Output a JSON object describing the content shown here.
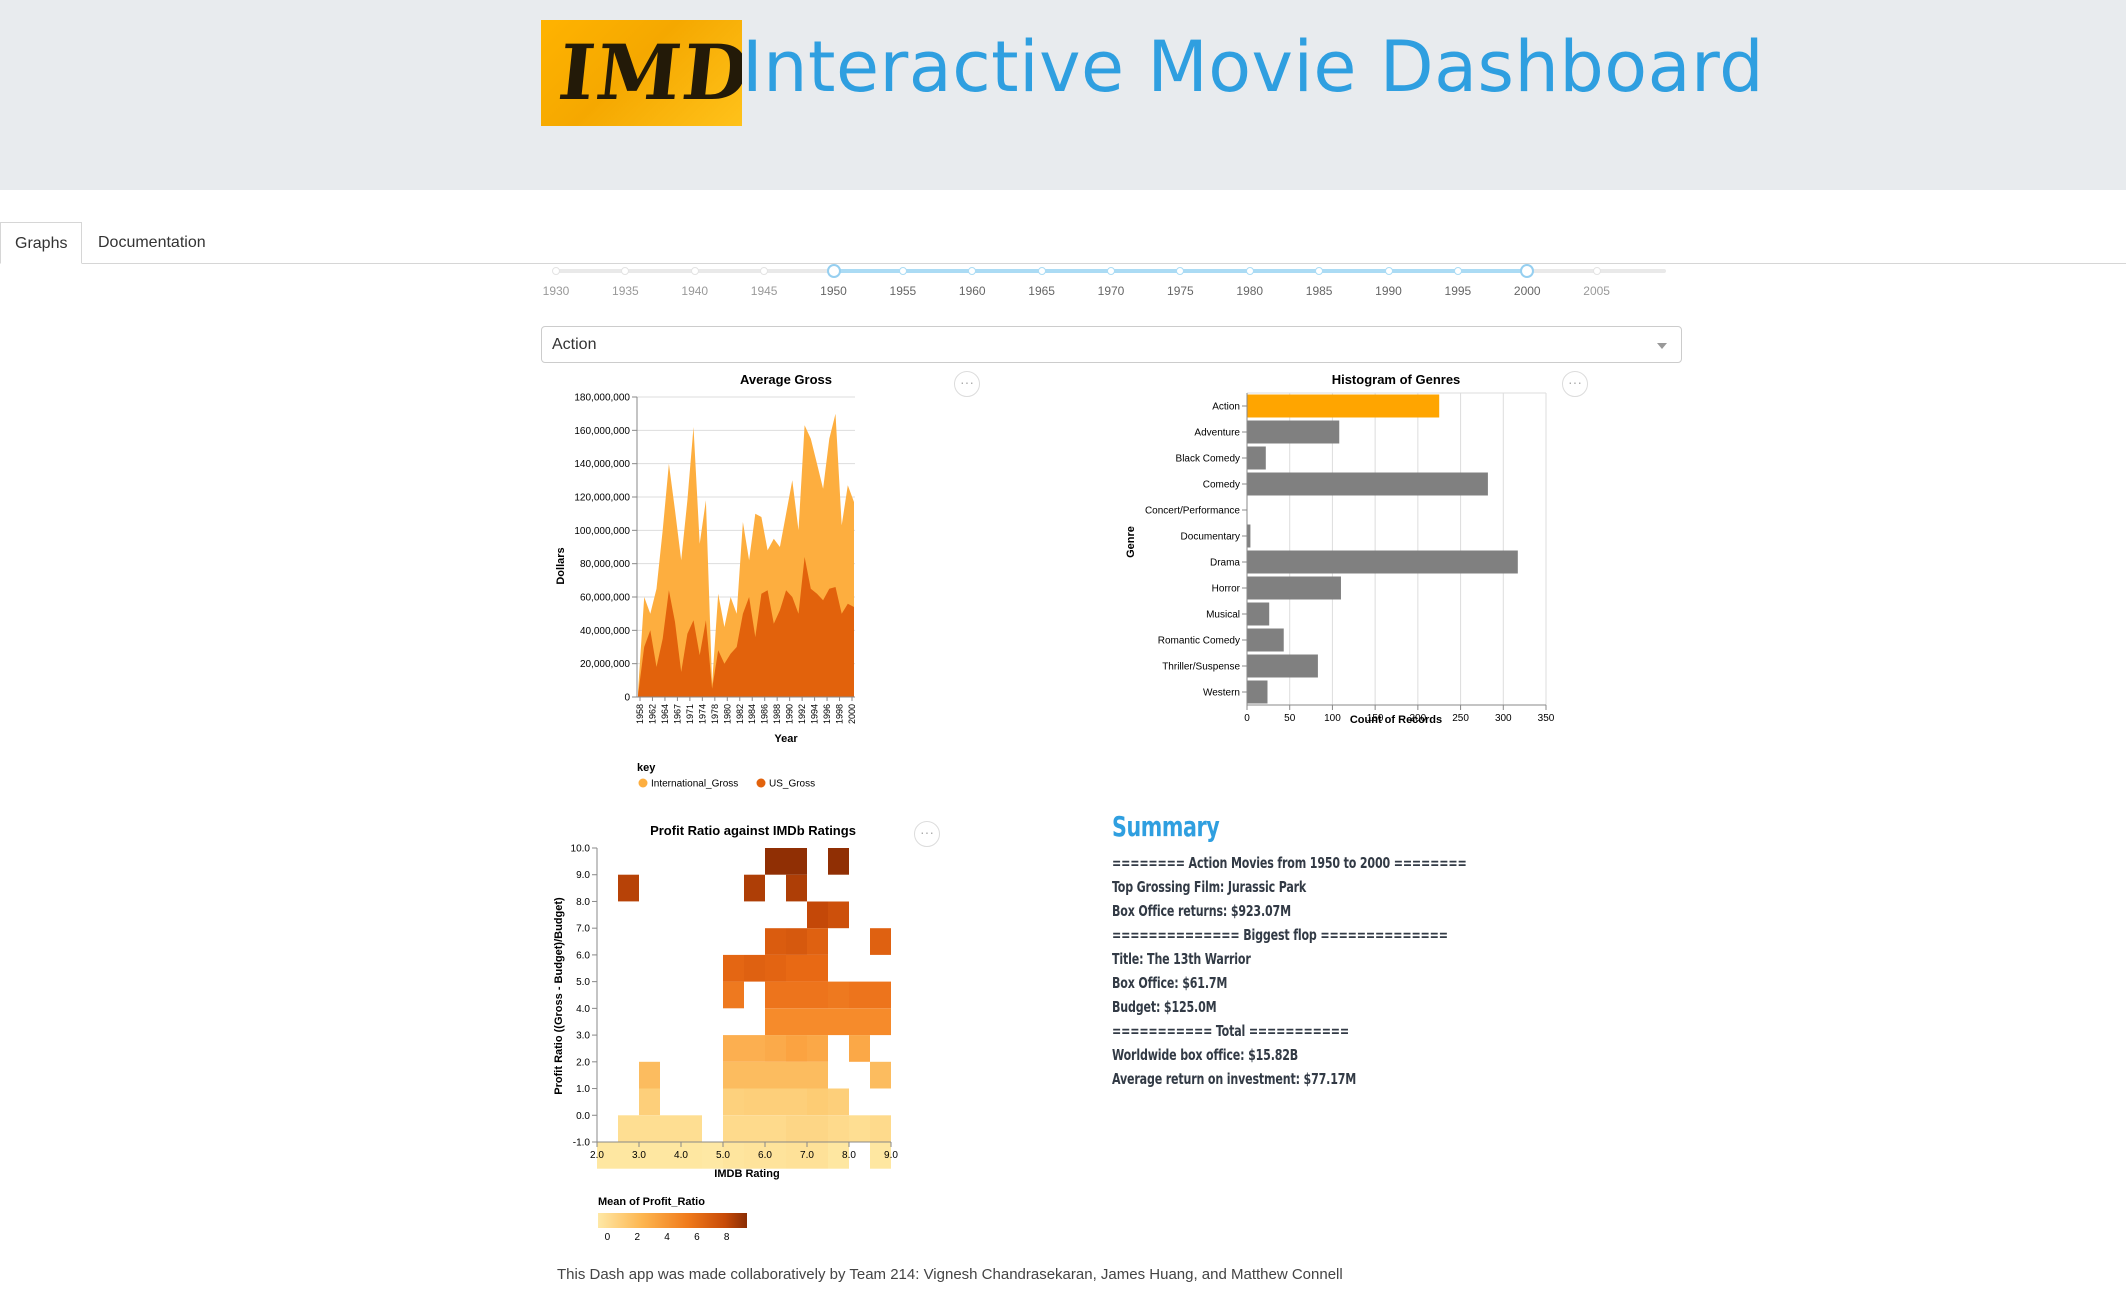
{
  "header": {
    "logo_text": "IMDb",
    "title": "Interactive Movie Dashboard"
  },
  "tabs": [
    {
      "label": "Graphs",
      "active": true
    },
    {
      "label": "Documentation",
      "active": false
    }
  ],
  "year_slider": {
    "marks": [
      "1930",
      "1935",
      "1940",
      "1945",
      "1950",
      "1955",
      "1960",
      "1965",
      "1970",
      "1975",
      "1980",
      "1985",
      "1990",
      "1995",
      "2000",
      "2005"
    ],
    "min": 1930,
    "max": 2010,
    "selected_range": [
      1950,
      2000
    ]
  },
  "genre_dropdown": {
    "selected": "Action",
    "caret_icon": "chevron-down-icon"
  },
  "colors": {
    "accent": "#2f9fe0",
    "international_gross": "#fdae3f",
    "us_gross": "#e2620c",
    "highlight_bar": "#ffa500",
    "bar": "#808080"
  },
  "chart_data": [
    {
      "id": "gross",
      "type": "area",
      "title": "Average Gross",
      "xlabel": "Year",
      "ylabel": "Dollars",
      "x_ticks": [
        "1958",
        "1962",
        "1964",
        "1967",
        "1971",
        "1974",
        "1978",
        "1980",
        "1982",
        "1984",
        "1986",
        "1988",
        "1990",
        "1992",
        "1994",
        "1996",
        "1998",
        "2000"
      ],
      "yticks": [
        "0",
        "20,000,000",
        "40,000,000",
        "60,000,000",
        "80,000,000",
        "100,000,000",
        "120,000,000",
        "140,000,000",
        "160,000,000",
        "180,000,000"
      ],
      "ylim": [
        0,
        180000000
      ],
      "legend_title": "key",
      "legend_position": "bottom-left",
      "series": [
        {
          "name": "International_Gross",
          "color": "#fdae3f",
          "values": [
            3000000,
            60000000,
            50000000,
            65000000,
            100000000,
            140000000,
            112000000,
            82000000,
            118000000,
            162000000,
            92000000,
            118000000,
            8000000,
            62000000,
            42000000,
            60000000,
            50000000,
            105000000,
            82000000,
            110000000,
            108000000,
            88000000,
            95000000,
            90000000,
            110000000,
            130000000,
            100000000,
            163000000,
            155000000,
            140000000,
            125000000,
            155000000,
            170000000,
            103000000,
            127000000,
            117000000
          ]
        },
        {
          "name": "US_Gross",
          "color": "#e2620c",
          "values": [
            1000000,
            30000000,
            40000000,
            18000000,
            35000000,
            64000000,
            45000000,
            15000000,
            38000000,
            46000000,
            25000000,
            46000000,
            5000000,
            28000000,
            20000000,
            26000000,
            30000000,
            50000000,
            60000000,
            36000000,
            62000000,
            64000000,
            44000000,
            52000000,
            64000000,
            60000000,
            50000000,
            84000000,
            65000000,
            62000000,
            58000000,
            65000000,
            66000000,
            50000000,
            56000000,
            54000000
          ]
        }
      ]
    },
    {
      "id": "genres",
      "type": "bar",
      "title": "Histogram of Genres",
      "xlabel": "Count of Records",
      "ylabel": "Genre",
      "categories": [
        "Action",
        "Adventure",
        "Black Comedy",
        "Comedy",
        "Concert/Performance",
        "Documentary",
        "Drama",
        "Horror",
        "Musical",
        "Romantic Comedy",
        "Thriller/Suspense",
        "Western"
      ],
      "values": [
        225,
        108,
        22,
        282,
        0,
        4,
        317,
        110,
        26,
        43,
        83,
        24
      ],
      "highlight": "Action",
      "xticks": [
        "0",
        "50",
        "100",
        "150",
        "200",
        "250",
        "300",
        "350"
      ],
      "xlim": [
        0,
        350
      ]
    },
    {
      "id": "heatmap",
      "type": "heatmap",
      "title": "Profit Ratio against IMDb Ratings",
      "xlabel": "IMDB Rating",
      "ylabel": "Profit Ratio ((Gross - Budget)/Budget)",
      "xticks": [
        "2.0",
        "3.0",
        "4.0",
        "5.0",
        "6.0",
        "7.0",
        "8.0",
        "9.0"
      ],
      "yticks": [
        "-1.0",
        "0.0",
        "1.0",
        "2.0",
        "3.0",
        "4.0",
        "5.0",
        "6.0",
        "7.0",
        "8.0",
        "9.0",
        "10.0"
      ],
      "xlim": [
        2.0,
        9.0
      ],
      "ylim": [
        -1.0,
        10.0
      ],
      "legend_title": "Mean of Profit_Ratio",
      "legend_ticks": [
        "0",
        "2",
        "4",
        "6",
        "8"
      ],
      "cells": [
        [
          2.0,
          -1.0,
          0.3
        ],
        [
          2.5,
          -1.0,
          0.3
        ],
        [
          3.0,
          -1.0,
          0.3
        ],
        [
          3.5,
          -1.0,
          0.3
        ],
        [
          4.0,
          -1.0,
          0.3
        ],
        [
          4.5,
          -1.0,
          0.2
        ],
        [
          5.0,
          -1.0,
          0.4
        ],
        [
          5.5,
          -1.0,
          0.5
        ],
        [
          6.0,
          -1.0,
          0.5
        ],
        [
          6.5,
          -1.0,
          0.6
        ],
        [
          7.0,
          -1.0,
          0.6
        ],
        [
          7.5,
          -1.0,
          0.3
        ],
        [
          8.5,
          -1.0,
          0.3
        ],
        [
          2.5,
          0.0,
          0.8
        ],
        [
          3.0,
          0.0,
          0.8
        ],
        [
          3.5,
          0.0,
          0.8
        ],
        [
          4.0,
          0.0,
          0.8
        ],
        [
          5.0,
          0.0,
          1.0
        ],
        [
          5.5,
          0.0,
          1.0
        ],
        [
          6.0,
          0.0,
          1.0
        ],
        [
          6.5,
          0.0,
          1.2
        ],
        [
          7.0,
          0.0,
          1.2
        ],
        [
          7.5,
          0.0,
          1.0
        ],
        [
          8.0,
          0.0,
          0.8
        ],
        [
          8.5,
          0.0,
          1.0
        ],
        [
          3.0,
          1.0,
          1.6
        ],
        [
          5.0,
          1.0,
          1.5
        ],
        [
          5.5,
          1.0,
          1.6
        ],
        [
          6.0,
          1.0,
          1.6
        ],
        [
          6.5,
          1.0,
          1.6
        ],
        [
          7.0,
          1.0,
          1.8
        ],
        [
          7.5,
          1.0,
          1.6
        ],
        [
          3.0,
          2.0,
          2.5
        ],
        [
          5.0,
          2.0,
          2.5
        ],
        [
          5.5,
          2.0,
          2.5
        ],
        [
          6.0,
          2.0,
          2.5
        ],
        [
          6.5,
          2.0,
          2.5
        ],
        [
          7.0,
          2.0,
          2.5
        ],
        [
          8.5,
          2.0,
          2.5
        ],
        [
          5.0,
          3.0,
          3.0
        ],
        [
          5.5,
          3.0,
          3.0
        ],
        [
          6.0,
          3.0,
          3.2
        ],
        [
          6.5,
          3.0,
          3.5
        ],
        [
          7.0,
          3.0,
          3.3
        ],
        [
          8.0,
          3.0,
          3.3
        ],
        [
          6.0,
          4.0,
          4.5
        ],
        [
          6.5,
          4.0,
          4.5
        ],
        [
          7.0,
          4.0,
          4.5
        ],
        [
          7.5,
          4.0,
          4.5
        ],
        [
          8.0,
          4.0,
          4.5
        ],
        [
          8.5,
          4.0,
          4.5
        ],
        [
          5.0,
          5.0,
          5.3
        ],
        [
          6.0,
          5.0,
          5.5
        ],
        [
          6.5,
          5.0,
          5.5
        ],
        [
          7.0,
          5.0,
          5.5
        ],
        [
          7.5,
          5.0,
          5.3
        ],
        [
          8.0,
          5.0,
          5.5
        ],
        [
          8.5,
          5.0,
          5.5
        ],
        [
          5.0,
          6.0,
          6.2
        ],
        [
          5.5,
          6.0,
          6.5
        ],
        [
          6.0,
          6.0,
          6.3
        ],
        [
          6.5,
          6.0,
          6.0
        ],
        [
          7.0,
          6.0,
          6.0
        ],
        [
          6.0,
          7.0,
          6.8
        ],
        [
          6.5,
          7.0,
          7.0
        ],
        [
          7.0,
          7.0,
          6.5
        ],
        [
          8.5,
          7.0,
          6.5
        ],
        [
          7.0,
          8.0,
          8.0
        ],
        [
          7.5,
          8.0,
          7.5
        ],
        [
          2.5,
          9.0,
          8.3
        ],
        [
          5.5,
          9.0,
          8.5
        ],
        [
          6.5,
          9.0,
          8.5
        ],
        [
          6.0,
          10.0,
          9.2
        ],
        [
          6.5,
          10.0,
          9.2
        ],
        [
          7.5,
          10.0,
          9.2
        ]
      ]
    }
  ],
  "summary": {
    "heading": "Summary",
    "lines": [
      "======== Action Movies from 1950 to 2000 ========",
      "Top Grossing Film: Jurassic Park",
      "Box Office returns: $923.07M",
      "============== Biggest flop ==============",
      "Title: The 13th Warrior",
      "Box Office: $61.7M",
      "Budget: $125.0M",
      "=========== Total ===========",
      "Worldwide box office: $15.82B",
      "Average return on investment: $77.17M"
    ]
  },
  "footer": {
    "text": "This Dash app was made collaboratively by Team 214: Vignesh Chandrasekaran, James Huang, and Matthew Connell"
  }
}
